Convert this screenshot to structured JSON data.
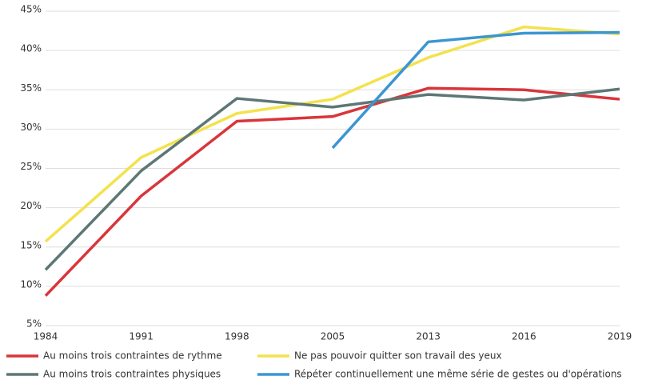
{
  "chart_data": {
    "type": "line",
    "categories": [
      "1984",
      "1991",
      "1998",
      "2005",
      "2013",
      "2016",
      "2019"
    ],
    "series": [
      {
        "name": "Au moins trois contraintes de rythme",
        "color": "#d9353b",
        "values": [
          8.8,
          21.5,
          31.0,
          31.6,
          35.2,
          35.0,
          33.8
        ]
      },
      {
        "name": "Ne pas pouvoir quitter son travail des yeux",
        "color": "#f3e24e",
        "values": [
          15.7,
          26.4,
          32.0,
          33.8,
          39.1,
          43.0,
          42.1
        ]
      },
      {
        "name": "Au moins trois contraintes physiques",
        "color": "#5d7775",
        "values": [
          12.1,
          24.7,
          33.9,
          32.8,
          34.4,
          33.7,
          35.1
        ]
      },
      {
        "name": "Répéter continuellement une même série de gestes ou d'opérations",
        "color": "#3c95d2",
        "values": [
          null,
          null,
          null,
          27.6,
          41.1,
          42.2,
          42.3
        ]
      }
    ],
    "ylim": [
      5,
      45
    ],
    "yticks": [
      {
        "value": 5,
        "label": "5%"
      },
      {
        "value": 10,
        "label": "10%"
      },
      {
        "value": 15,
        "label": "15%"
      },
      {
        "value": 20,
        "label": "20%"
      },
      {
        "value": 25,
        "label": "25%"
      },
      {
        "value": 30,
        "label": "30%"
      },
      {
        "value": 35,
        "label": "35%"
      },
      {
        "value": 40,
        "label": "40%"
      },
      {
        "value": 45,
        "label": "45%"
      }
    ],
    "grid": true,
    "legend": "bottom"
  }
}
